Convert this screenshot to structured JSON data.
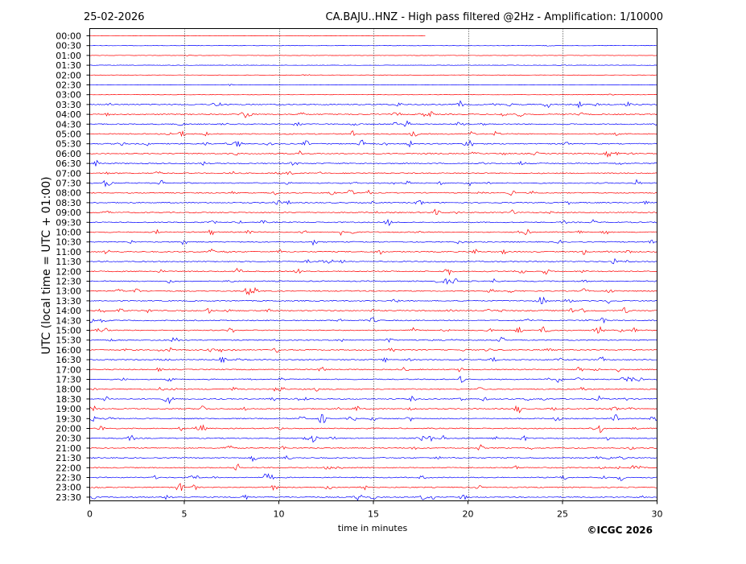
{
  "chart_data": {
    "type": "line",
    "title": "CA.BAJU..HNZ - High pass filtered @2Hz - Amplification: 1/10000",
    "date": "25-02-2026",
    "xlabel": "time in minutes",
    "ylabel": "UTC (local time = UTC + 01:00)",
    "xlim": [
      0,
      30
    ],
    "x_ticks": [
      "0",
      "5",
      "10",
      "15",
      "20",
      "25",
      "30"
    ],
    "x_tick_values": [
      0,
      5,
      10,
      15,
      20,
      25,
      30
    ],
    "vertical_gridlines_at": [
      5,
      10,
      15,
      20,
      25
    ],
    "row_labels": [
      "00:00",
      "00:30",
      "01:00",
      "01:30",
      "02:00",
      "02:30",
      "03:00",
      "03:30",
      "04:00",
      "04:30",
      "05:00",
      "05:30",
      "06:00",
      "06:30",
      "07:00",
      "07:30",
      "08:00",
      "08:30",
      "09:00",
      "09:30",
      "10:00",
      "10:30",
      "11:00",
      "11:30",
      "12:00",
      "12:30",
      "13:00",
      "13:30",
      "14:00",
      "14:30",
      "15:00",
      "15:30",
      "16:00",
      "16:30",
      "17:00",
      "17:30",
      "18:00",
      "18:30",
      "19:00",
      "19:30",
      "20:00",
      "20:30",
      "21:00",
      "21:30",
      "22:00",
      "22:30",
      "23:00",
      "23:30"
    ],
    "series_colors": [
      "#ff0000",
      "#0000ff"
    ],
    "first_row_end_minute": 17.8,
    "copyright": "©ICGC 2026"
  }
}
